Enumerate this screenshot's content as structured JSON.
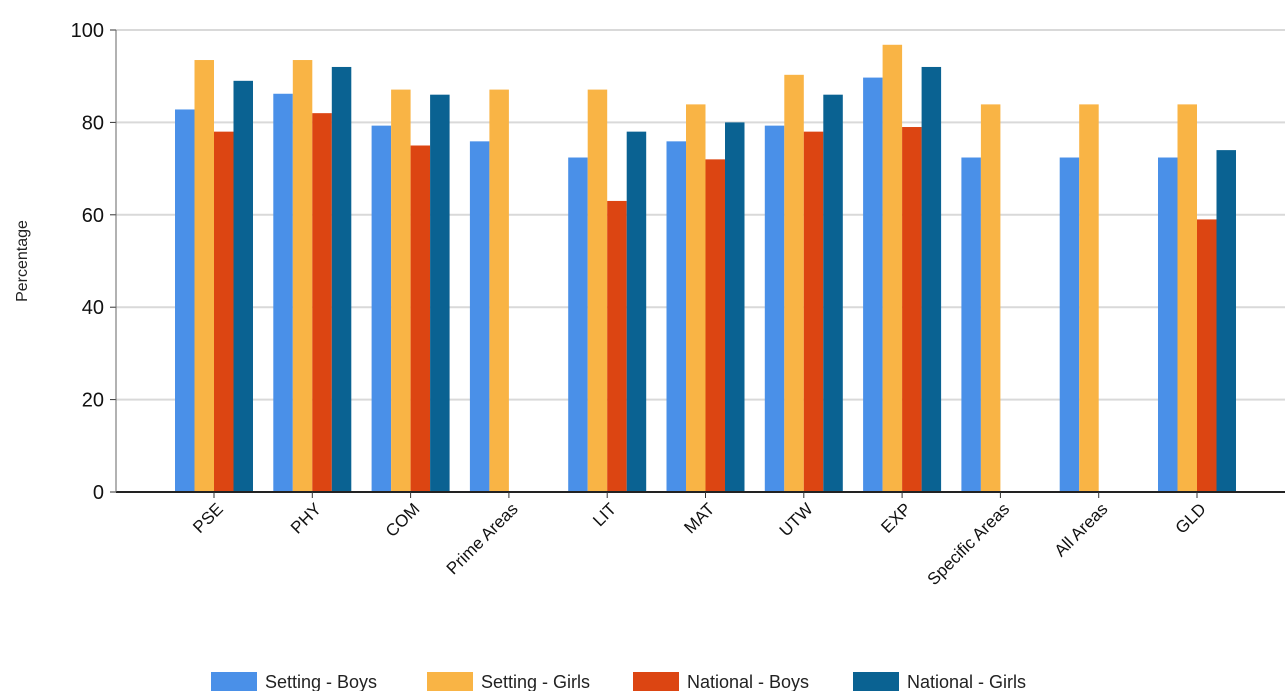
{
  "chart_data": {
    "type": "bar",
    "title": "",
    "xlabel": "",
    "ylabel": "Percentage",
    "ylim": [
      0,
      100
    ],
    "yticks": [
      0,
      20,
      40,
      60,
      80,
      100
    ],
    "grid": true,
    "legend_position": "bottom",
    "categories": [
      "PSE",
      "PHY",
      "COM",
      "Prime Areas",
      "LIT",
      "MAT",
      "UTW",
      "EXP",
      "Specific Areas",
      "All Areas",
      "GLD"
    ],
    "series": [
      {
        "name": "Setting - Boys",
        "color": "#4a90e8",
        "values": [
          82.8,
          86.2,
          79.3,
          75.9,
          72.4,
          75.9,
          79.3,
          89.7,
          72.4,
          72.4,
          72.4
        ]
      },
      {
        "name": "Setting - Girls",
        "color": "#f9b445",
        "values": [
          93.5,
          93.5,
          87.1,
          87.1,
          87.1,
          83.9,
          90.3,
          96.8,
          83.9,
          83.9,
          83.9
        ]
      },
      {
        "name": "National - Boys",
        "color": "#dc4512",
        "values": [
          78,
          82,
          75,
          null,
          63,
          72,
          78,
          79,
          null,
          null,
          59
        ]
      },
      {
        "name": "National - Girls",
        "color": "#0a6292",
        "values": [
          89,
          92,
          86,
          null,
          78,
          80,
          86,
          92,
          null,
          null,
          74
        ]
      }
    ]
  }
}
